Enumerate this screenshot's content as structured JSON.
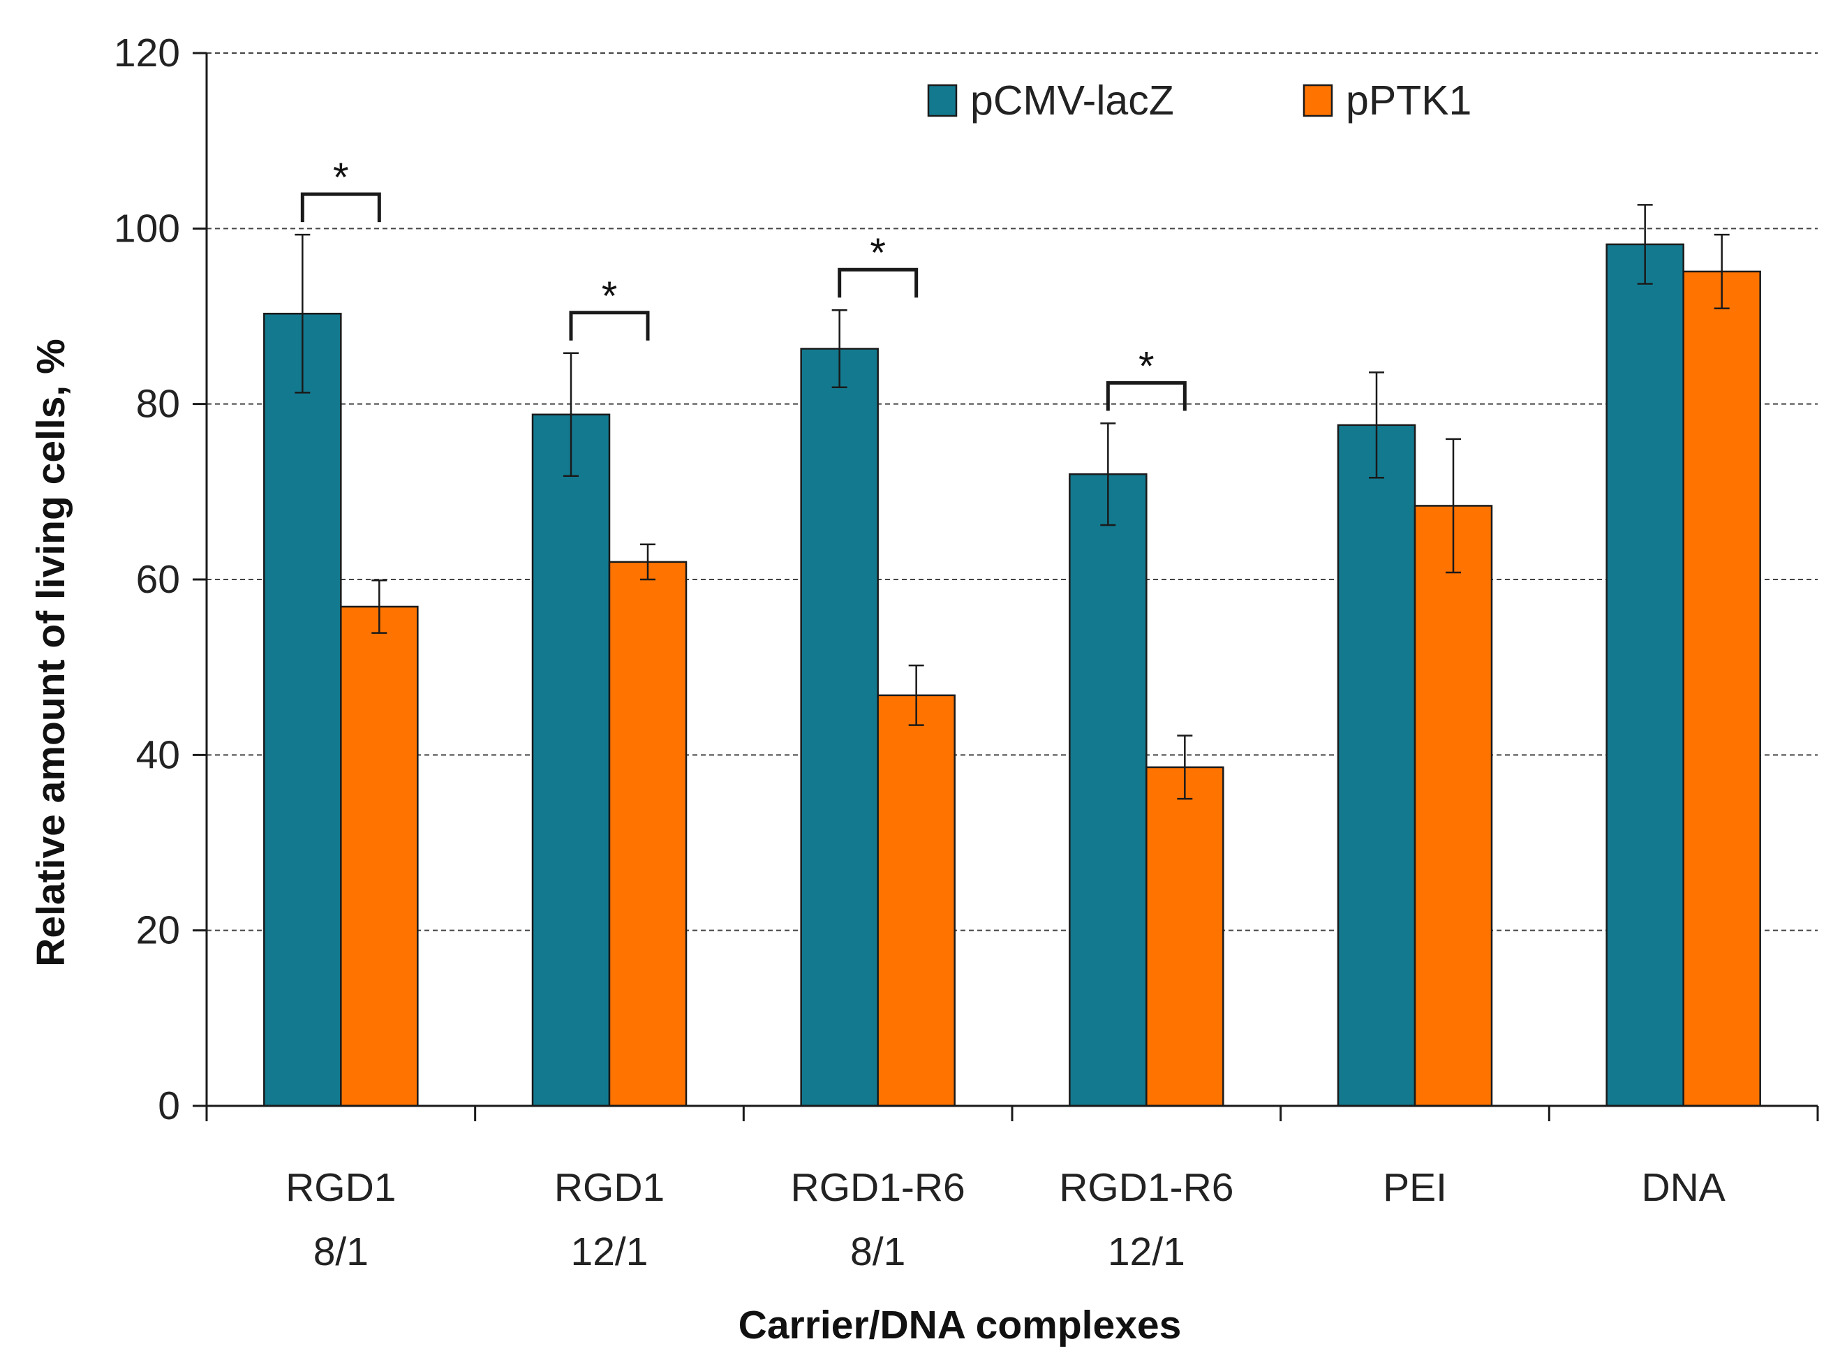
{
  "chart_data": {
    "type": "bar",
    "title": "",
    "xlabel": "Carrier/DNA complexes",
    "ylabel": "Relative amount of living cells, %",
    "ylim": [
      0,
      120
    ],
    "yticks": [
      0,
      20,
      40,
      60,
      80,
      100,
      120
    ],
    "ytick_labels": [
      "0",
      "20",
      "40",
      "60",
      "80",
      "100",
      "120"
    ],
    "grid": "horizontal dashed",
    "legend_position": "top-right",
    "categories": [
      {
        "line1": "RGD1",
        "line2": "8/1"
      },
      {
        "line1": "RGD1",
        "line2": "12/1"
      },
      {
        "line1": "RGD1-R6",
        "line2": "8/1"
      },
      {
        "line1": "RGD1-R6",
        "line2": "12/1"
      },
      {
        "line1": "PEI",
        "line2": ""
      },
      {
        "line1": "DNA",
        "line2": ""
      }
    ],
    "series": [
      {
        "name": "pCMV-lacZ",
        "color": "#13798f",
        "values": [
          90.3,
          78.8,
          86.3,
          72.0,
          77.6,
          98.2
        ],
        "errors": [
          9.0,
          7.0,
          4.4,
          5.8,
          6.0,
          4.5
        ]
      },
      {
        "name": "pPTK1",
        "color": "#ff7300",
        "values": [
          56.9,
          62.0,
          46.8,
          38.6,
          68.4,
          95.1
        ],
        "errors": [
          3.0,
          2.0,
          3.4,
          3.6,
          7.6,
          4.2
        ]
      }
    ],
    "significance": [
      {
        "category_index": 0,
        "mark": "*"
      },
      {
        "category_index": 1,
        "mark": "*"
      },
      {
        "category_index": 2,
        "mark": "*"
      },
      {
        "category_index": 3,
        "mark": "*"
      }
    ]
  }
}
